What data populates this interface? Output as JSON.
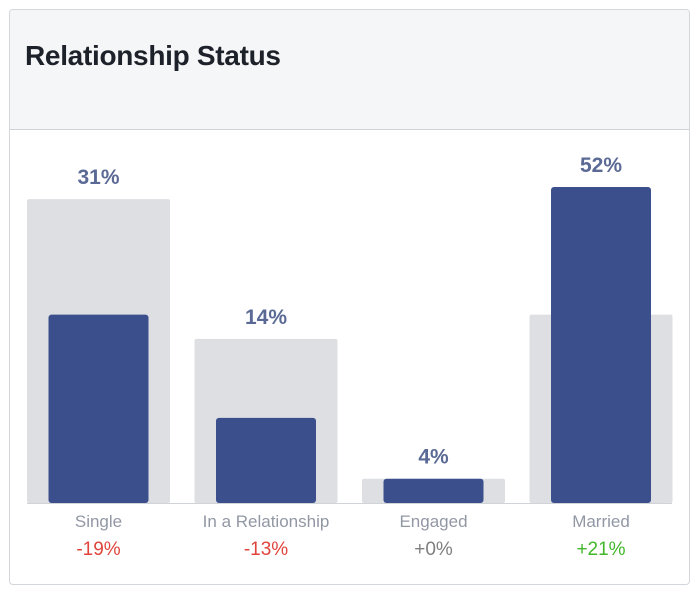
{
  "header": {
    "title": "Relationship Status"
  },
  "colors": {
    "bar": "#3b4f8c",
    "comparison_bar": "#dddfe2",
    "value_label": "#5b6a95",
    "category_label": "#9197a3",
    "negative": "#e0443c",
    "neutral": "#7f7f7f",
    "positive": "#42b72a"
  },
  "chart_data": {
    "type": "bar",
    "title": "Relationship Status",
    "categories": [
      "Single",
      "In a Relationship",
      "Engaged",
      "Married"
    ],
    "series": [
      {
        "values": [
          31,
          14,
          4,
          52
        ]
      },
      {
        "values": [
          50,
          27,
          4,
          31
        ]
      }
    ],
    "value_labels": [
      "31%",
      "14%",
      "4%",
      "52%"
    ],
    "deltas": [
      "-19%",
      "-13%",
      "+0%",
      "+21%"
    ],
    "delta_signs": [
      "negative",
      "negative",
      "neutral",
      "positive"
    ],
    "ylim": [
      0,
      60
    ],
    "grid": false,
    "legend": "none"
  }
}
